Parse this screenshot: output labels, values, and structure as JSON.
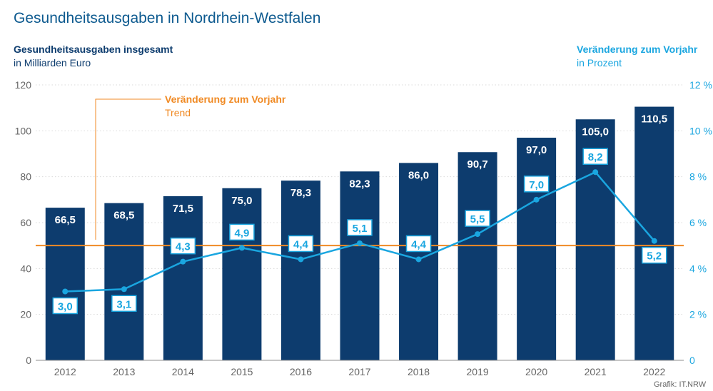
{
  "header": {
    "title": "Gesundheitsausgaben in Nordrhein-Westfalen",
    "left_axis_heading": "Gesundheitsausgaben insgesamt",
    "left_axis_unit": "in Milliarden Euro",
    "right_axis_heading": "Veränderung zum Vorjahr",
    "right_axis_unit": "in Prozent"
  },
  "annotation": {
    "heading": "Veränderung zum Vorjahr",
    "subheading": "Trend"
  },
  "source": "Grafik: IT.NRW",
  "colors": {
    "bar": "#0d3c6e",
    "line": "#1aa6e0",
    "trend": "#f08a24",
    "axis_text": "#666666",
    "grid": "#d9d9d9"
  },
  "chart_data": {
    "type": "bar",
    "title": "Gesundheitsausgaben in Nordrhein-Westfalen",
    "categories": [
      "2012",
      "2013",
      "2014",
      "2015",
      "2016",
      "2017",
      "2018",
      "2019",
      "2020",
      "2021",
      "2022"
    ],
    "series": [
      {
        "name": "Gesundheitsausgaben insgesamt",
        "type": "bar",
        "axis": "left",
        "values": [
          66.5,
          68.5,
          71.5,
          75.0,
          78.3,
          82.3,
          86.0,
          90.7,
          97.0,
          105.0,
          110.5
        ],
        "labels": [
          "66,5",
          "68,5",
          "71,5",
          "75,0",
          "78,3",
          "82,3",
          "86,0",
          "90,7",
          "97,0",
          "105,0",
          "110,5"
        ]
      },
      {
        "name": "Veränderung zum Vorjahr",
        "type": "line",
        "axis": "right",
        "values": [
          3.0,
          3.1,
          4.3,
          4.9,
          4.4,
          5.1,
          4.4,
          5.5,
          7.0,
          8.2,
          5.2
        ],
        "labels": [
          "3,0",
          "3,1",
          "4,3",
          "4,9",
          "4,4",
          "5,1",
          "4,4",
          "5,5",
          "7,0",
          "8,2",
          "5,2"
        ]
      }
    ],
    "trend": {
      "name": "Veränderung zum Vorjahr",
      "label": "Trend",
      "value_percent": 5.0
    },
    "left_axis": {
      "ylim": [
        0,
        120
      ],
      "ticks": [
        0,
        20,
        40,
        60,
        80,
        100,
        120
      ],
      "tick_labels": [
        "0",
        "20",
        "40",
        "60",
        "80",
        "100",
        "120"
      ]
    },
    "right_axis": {
      "ylim": [
        0,
        12
      ],
      "ticks": [
        0,
        2,
        4,
        6,
        8,
        10,
        12
      ],
      "tick_labels": [
        "0",
        "2 %",
        "4 %",
        "6 %",
        "8 %",
        "10 %",
        "12 %"
      ]
    },
    "grid": true,
    "legend": "none"
  }
}
